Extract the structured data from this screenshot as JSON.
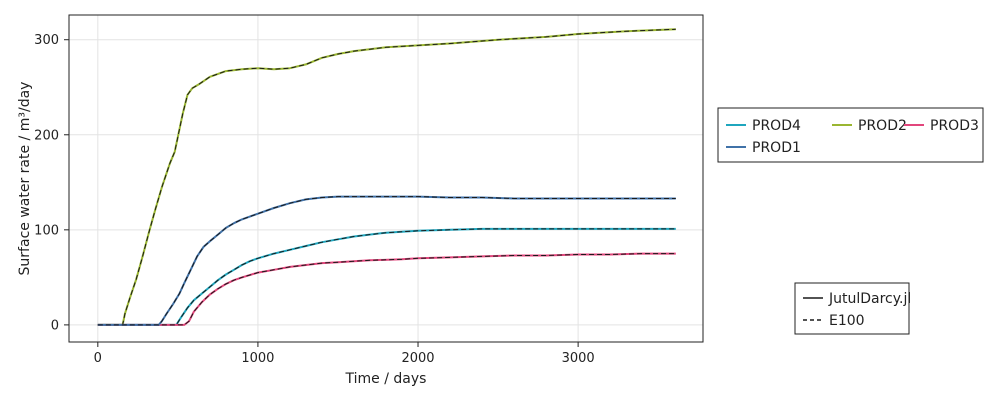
{
  "chart_data": {
    "type": "line",
    "title": "",
    "xlabel": "Time / days",
    "ylabel": "Surface water rate / m³/day",
    "xlim": [
      -180,
      3780
    ],
    "ylim": [
      -18,
      326
    ],
    "xticks": [
      0,
      1000,
      2000,
      3000
    ],
    "yticks": [
      0,
      100,
      200,
      300
    ],
    "grid": true,
    "legend_position": "right",
    "series": [
      {
        "name": "PROD4",
        "color": "#1fa6be",
        "points": [
          [
            0,
            0
          ],
          [
            490,
            0
          ],
          [
            520,
            8
          ],
          [
            560,
            18
          ],
          [
            600,
            26
          ],
          [
            650,
            33
          ],
          [
            700,
            40
          ],
          [
            750,
            47
          ],
          [
            800,
            53
          ],
          [
            850,
            58
          ],
          [
            900,
            63
          ],
          [
            950,
            67
          ],
          [
            1000,
            70
          ],
          [
            1100,
            75
          ],
          [
            1200,
            79
          ],
          [
            1300,
            83
          ],
          [
            1400,
            87
          ],
          [
            1500,
            90
          ],
          [
            1600,
            93
          ],
          [
            1800,
            97
          ],
          [
            2000,
            99
          ],
          [
            2200,
            100
          ],
          [
            2400,
            101
          ],
          [
            2600,
            101
          ],
          [
            2800,
            101
          ],
          [
            3000,
            101
          ],
          [
            3200,
            101
          ],
          [
            3400,
            101
          ],
          [
            3610,
            101
          ]
        ]
      },
      {
        "name": "PROD2",
        "color": "#9ab631",
        "points": [
          [
            0,
            0
          ],
          [
            155,
            0
          ],
          [
            170,
            12
          ],
          [
            200,
            28
          ],
          [
            240,
            48
          ],
          [
            280,
            72
          ],
          [
            320,
            98
          ],
          [
            360,
            122
          ],
          [
            400,
            145
          ],
          [
            450,
            170
          ],
          [
            480,
            182
          ],
          [
            500,
            198
          ],
          [
            530,
            222
          ],
          [
            560,
            242
          ],
          [
            590,
            249
          ],
          [
            630,
            253
          ],
          [
            700,
            261
          ],
          [
            800,
            267
          ],
          [
            900,
            269
          ],
          [
            1000,
            270
          ],
          [
            1100,
            269
          ],
          [
            1200,
            270
          ],
          [
            1300,
            274
          ],
          [
            1400,
            281
          ],
          [
            1500,
            285
          ],
          [
            1600,
            288
          ],
          [
            1800,
            292
          ],
          [
            2000,
            294
          ],
          [
            2200,
            296
          ],
          [
            2500,
            300
          ],
          [
            2800,
            303
          ],
          [
            3000,
            306
          ],
          [
            3300,
            309
          ],
          [
            3610,
            311
          ]
        ]
      },
      {
        "name": "PROD3",
        "color": "#e2467c",
        "points": [
          [
            0,
            0
          ],
          [
            540,
            0
          ],
          [
            570,
            4
          ],
          [
            600,
            14
          ],
          [
            650,
            24
          ],
          [
            700,
            32
          ],
          [
            750,
            38
          ],
          [
            800,
            43
          ],
          [
            850,
            47
          ],
          [
            900,
            50
          ],
          [
            1000,
            55
          ],
          [
            1100,
            58
          ],
          [
            1200,
            61
          ],
          [
            1300,
            63
          ],
          [
            1400,
            65
          ],
          [
            1500,
            66
          ],
          [
            1700,
            68
          ],
          [
            1900,
            69
          ],
          [
            2000,
            70
          ],
          [
            2200,
            71
          ],
          [
            2400,
            72
          ],
          [
            2600,
            73
          ],
          [
            2800,
            73
          ],
          [
            3000,
            74
          ],
          [
            3200,
            74
          ],
          [
            3400,
            75
          ],
          [
            3610,
            75
          ]
        ]
      },
      {
        "name": "PROD1",
        "color": "#4072a8",
        "points": [
          [
            0,
            0
          ],
          [
            380,
            0
          ],
          [
            400,
            4
          ],
          [
            430,
            12
          ],
          [
            470,
            22
          ],
          [
            510,
            33
          ],
          [
            540,
            44
          ],
          [
            580,
            58
          ],
          [
            620,
            72
          ],
          [
            660,
            82
          ],
          [
            700,
            88
          ],
          [
            750,
            95
          ],
          [
            800,
            102
          ],
          [
            850,
            107
          ],
          [
            900,
            111
          ],
          [
            1000,
            117
          ],
          [
            1100,
            123
          ],
          [
            1200,
            128
          ],
          [
            1300,
            132
          ],
          [
            1400,
            134
          ],
          [
            1500,
            135
          ],
          [
            1600,
            135
          ],
          [
            1800,
            135
          ],
          [
            2000,
            135
          ],
          [
            2200,
            134
          ],
          [
            2400,
            134
          ],
          [
            2600,
            133
          ],
          [
            2800,
            133
          ],
          [
            3000,
            133
          ],
          [
            3200,
            133
          ],
          [
            3400,
            133
          ],
          [
            3610,
            133
          ]
        ]
      }
    ],
    "line_styles": [
      {
        "name": "JutulDarcy.jl",
        "dash": "solid"
      },
      {
        "name": "E100",
        "dash": "dashed"
      }
    ]
  }
}
